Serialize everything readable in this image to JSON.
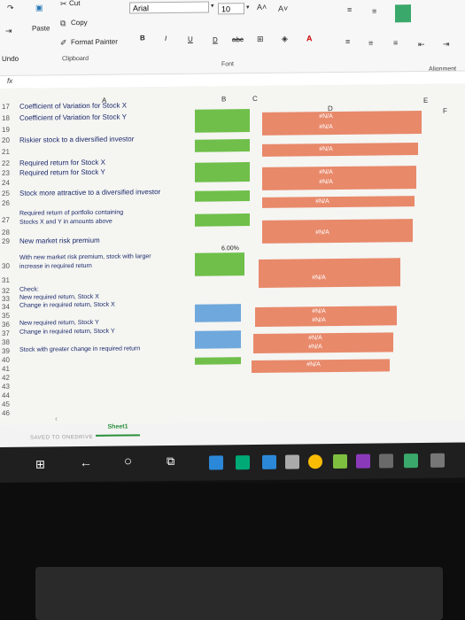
{
  "ribbon": {
    "cut": "Cut",
    "copy": "Copy",
    "paste": "Paste",
    "format_painter": "Format Painter",
    "clipboard_group": "Clipboard",
    "font_name": "Arial",
    "font_size": "10",
    "font_group": "Font",
    "alignment_group": "Alignment",
    "undo": "Undo",
    "bold": "B",
    "italic": "I",
    "underline": "U",
    "strikethrough": "abc",
    "fx": "fx"
  },
  "columns": [
    "A",
    "B",
    "C",
    "D",
    "E",
    "F"
  ],
  "rows": [
    {
      "num": "17",
      "label": "Coefficient of Variation for Stock X"
    },
    {
      "num": "18",
      "label": "Coefficient of Variation for Stock Y"
    },
    {
      "num": "19",
      "label": ""
    },
    {
      "num": "20",
      "label": "Riskier stock to a diversified investor"
    },
    {
      "num": "21",
      "label": ""
    },
    {
      "num": "22",
      "label": "Required return for Stock X"
    },
    {
      "num": "23",
      "label": "Required return for Stock Y"
    },
    {
      "num": "24",
      "label": ""
    },
    {
      "num": "25",
      "label": "Stock more attractive to a diversified investor"
    },
    {
      "num": "26",
      "label": ""
    },
    {
      "num": "27",
      "label": "Required return of portfolio containing"
    },
    {
      "num": "",
      "label": "Stocks X and Y in amounts above"
    },
    {
      "num": "28",
      "label": ""
    },
    {
      "num": "29",
      "label": "New market risk premium"
    },
    {
      "num": "30",
      "label": "With new market risk premium, stock with larger"
    },
    {
      "num": "",
      "label": "increase in required return"
    },
    {
      "num": "31",
      "label": ""
    },
    {
      "num": "32",
      "label": "Check:"
    },
    {
      "num": "33",
      "label": "New required return, Stock X"
    },
    {
      "num": "34",
      "label": "Change in required return, Stock X"
    },
    {
      "num": "35",
      "label": ""
    },
    {
      "num": "36",
      "label": "New required return, Stock Y"
    },
    {
      "num": "37",
      "label": "Change in required return, Stock Y"
    },
    {
      "num": "38",
      "label": ""
    },
    {
      "num": "39",
      "label": "Stock with greater change in required return"
    },
    {
      "num": "40",
      "label": ""
    },
    {
      "num": "41",
      "label": ""
    },
    {
      "num": "42",
      "label": ""
    },
    {
      "num": "43",
      "label": ""
    },
    {
      "num": "44",
      "label": ""
    },
    {
      "num": "45",
      "label": ""
    },
    {
      "num": "46",
      "label": ""
    }
  ],
  "na": "#N/A",
  "premium_value": "6.00%",
  "sheet_tab": "Sheet1",
  "status": "SAVED TO ONEDRIVE",
  "colors": {
    "green": "#6fbf4a",
    "orange": "#e8896a",
    "blue": "#6fa8dc"
  }
}
